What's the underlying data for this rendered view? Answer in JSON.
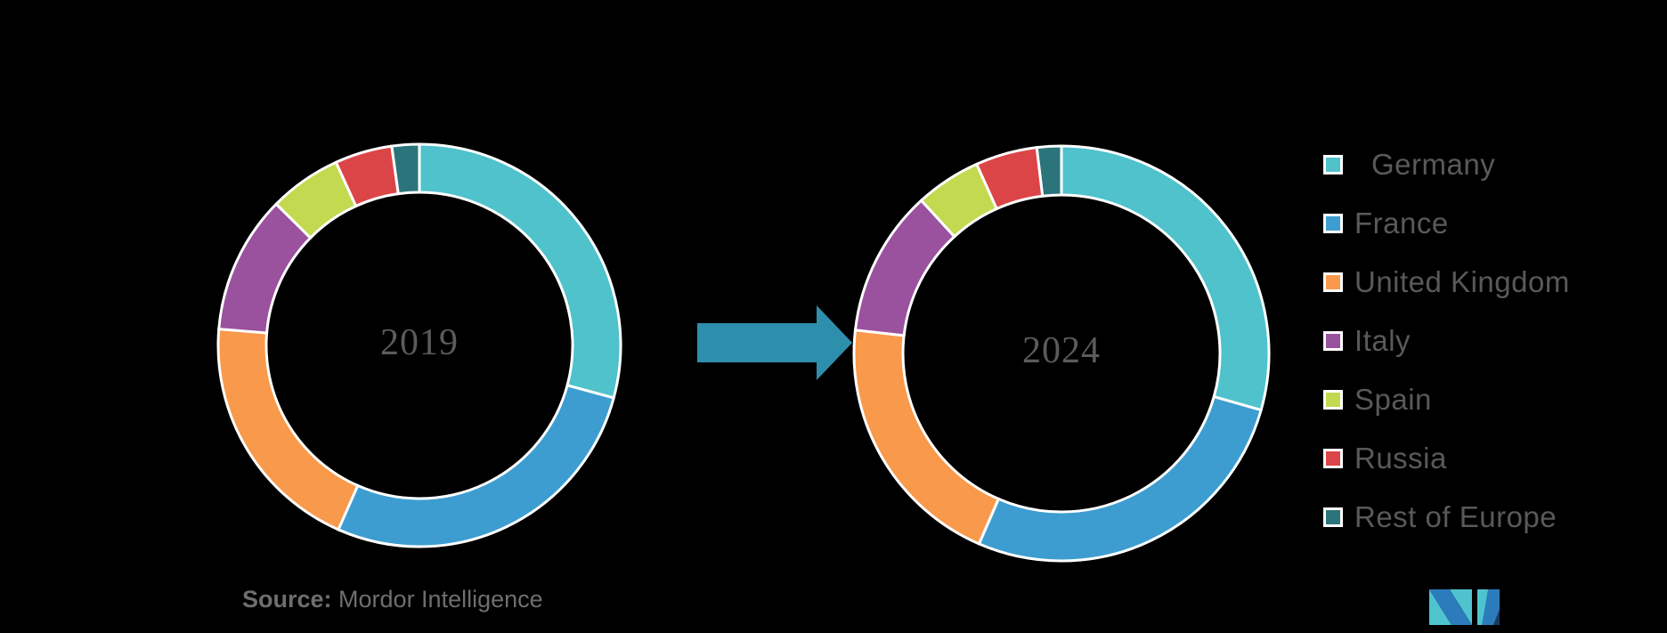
{
  "page": {
    "background": "#000000"
  },
  "chart_data": [
    {
      "type": "pie",
      "variant": "donut",
      "center_label": "2019",
      "categories": [
        "Germany",
        "France",
        "United Kingdom",
        "Italy",
        "Spain",
        "Russia",
        "Rest of Europe"
      ],
      "values": [
        29.2,
        27.4,
        19.7,
        11.1,
        5.8,
        4.6,
        2.2
      ],
      "unit": "percent share (estimated from arc angles)",
      "colors": [
        "#4FC2CB",
        "#3D9DD0",
        "#F8994B",
        "#9A519E",
        "#C3D94F",
        "#DC4547",
        "#2C747C"
      ],
      "start_angle_deg": 0,
      "direction": "clockwise",
      "slice_border_color": "#FFFFFF",
      "center_label_color": "#5B5B5B"
    },
    {
      "type": "pie",
      "variant": "donut",
      "center_label": "2024",
      "categories": [
        "Germany",
        "France",
        "United Kingdom",
        "Italy",
        "Spain",
        "Russia",
        "Rest of Europe"
      ],
      "values": [
        29.4,
        27.1,
        20.3,
        11.4,
        5.1,
        4.8,
        1.9
      ],
      "unit": "percent share (estimated from arc angles)",
      "colors": [
        "#4FC2CB",
        "#3D9DD0",
        "#F8994B",
        "#9A519E",
        "#C3D94F",
        "#DC4547",
        "#2C747C"
      ],
      "start_angle_deg": 0,
      "direction": "clockwise",
      "slice_border_color": "#FFFFFF",
      "center_label_color": "#5B5B5B"
    }
  ],
  "legend": {
    "position": "right",
    "text_color": "#58595B",
    "swatch_border_color": "#FFFFFF",
    "items": [
      {
        "label": "Germany",
        "color": "#4FC2CB"
      },
      {
        "label": "France",
        "color": "#3D9DD0"
      },
      {
        "label": "United Kingdom",
        "color": "#F8994B"
      },
      {
        "label": "Italy",
        "color": "#9A519E"
      },
      {
        "label": "Spain",
        "color": "#C3D94F"
      },
      {
        "label": "Russia",
        "color": "#DC4547"
      },
      {
        "label": "Rest of Europe",
        "color": "#2C747C"
      }
    ]
  },
  "arrow": {
    "direction": "right",
    "color": "#2E8FAD"
  },
  "source": {
    "prefix": "Source:",
    "text": " Mordor Intelligence",
    "color": "#6E6E6E"
  },
  "logo": {
    "name": "mordor-intelligence-logo",
    "blue": "#2C7CBC",
    "teal": "#4FC4CF",
    "navy": "#1C3A5E"
  }
}
